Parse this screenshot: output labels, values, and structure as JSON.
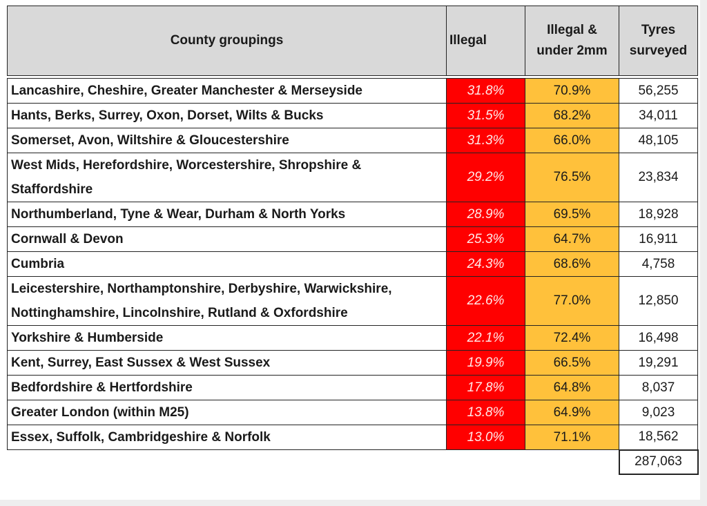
{
  "headers": {
    "county": "County groupings",
    "illegal": "Illegal",
    "under2mm": "Illegal & under 2mm",
    "tyres": "Tyres surveyed"
  },
  "colors": {
    "illegal": "#ff0000",
    "under2mm": "#ffc13b",
    "header": "#d9d9d9"
  },
  "rows": [
    {
      "county": "Lancashire, Cheshire, Greater Manchester & Merseyside",
      "illegal": "31.8%",
      "under2mm": "70.9%",
      "tyres": "56,255"
    },
    {
      "county": "Hants, Berks, Surrey, Oxon, Dorset, Wilts & Bucks",
      "illegal": "31.5%",
      "under2mm": "68.2%",
      "tyres": "34,011"
    },
    {
      "county": "Somerset, Avon, Wiltshire & Gloucestershire",
      "illegal": "31.3%",
      "under2mm": "66.0%",
      "tyres": "48,105"
    },
    {
      "county": "West Mids, Herefordshire, Worcestershire, Shropshire & Staffordshire",
      "illegal": "29.2%",
      "under2mm": "76.5%",
      "tyres": "23,834"
    },
    {
      "county": "Northumberland, Tyne & Wear, Durham & North Yorks",
      "illegal": "28.9%",
      "under2mm": "69.5%",
      "tyres": "18,928"
    },
    {
      "county": "Cornwall & Devon",
      "illegal": "25.3%",
      "under2mm": "64.7%",
      "tyres": "16,911"
    },
    {
      "county": "Cumbria",
      "illegal": "24.3%",
      "under2mm": "68.6%",
      "tyres": "4,758"
    },
    {
      "county": "Leicestershire, Northamptonshire, Derbyshire, Warwickshire, Nottinghamshire, Lincolnshire, Rutland & Oxfordshire",
      "illegal": "22.6%",
      "under2mm": "77.0%",
      "tyres": "12,850"
    },
    {
      "county": "Yorkshire & Humberside",
      "illegal": "22.1%",
      "under2mm": "72.4%",
      "tyres": "16,498"
    },
    {
      "county": "Kent, Surrey, East Sussex & West Sussex",
      "illegal": "19.9%",
      "under2mm": "66.5%",
      "tyres": "19,291"
    },
    {
      "county": "Bedfordshire & Hertfordshire",
      "illegal": "17.8%",
      "under2mm": "64.8%",
      "tyres": "8,037"
    },
    {
      "county": "Greater London (within M25)",
      "illegal": "13.8%",
      "under2mm": "64.9%",
      "tyres": "9,023"
    },
    {
      "county": "Essex, Suffolk, Cambridgeshire & Norfolk",
      "illegal": "13.0%",
      "under2mm": "71.1%",
      "tyres": "18,562"
    }
  ],
  "total": "287,063"
}
